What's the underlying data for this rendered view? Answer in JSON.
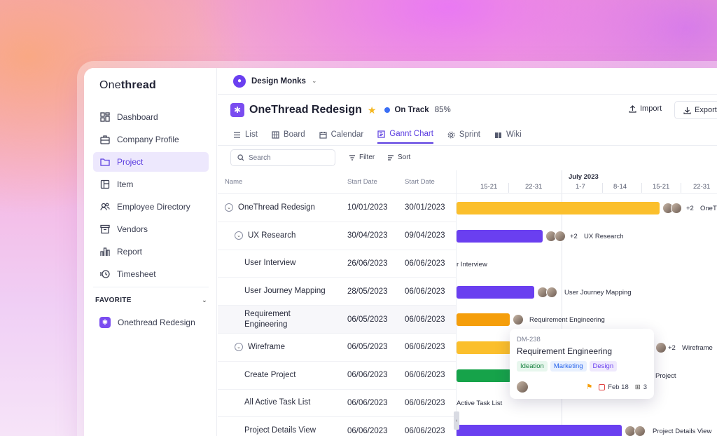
{
  "sidebar": {
    "logo_light": "One",
    "logo_bold": "thread",
    "items": [
      {
        "label": "Dashboard",
        "icon": "dashboard-icon"
      },
      {
        "label": "Company Profile",
        "icon": "briefcase-icon"
      },
      {
        "label": "Project",
        "icon": "folder-icon",
        "active": true
      },
      {
        "label": "Item",
        "icon": "item-icon"
      },
      {
        "label": "Employee Directory",
        "icon": "users-icon"
      },
      {
        "label": "Vendors",
        "icon": "archive-icon"
      },
      {
        "label": "Report",
        "icon": "chart-icon"
      },
      {
        "label": "Timesheet",
        "icon": "clock-icon"
      }
    ],
    "favorite_heading": "FAVORITE",
    "favorite_item": "Onethread Redesign"
  },
  "topbar": {
    "workspace": "Design Monks"
  },
  "project": {
    "title": "OneThread Redesign",
    "status": "On Track",
    "progress": "85%",
    "import_label": "Import",
    "export_label": "Export"
  },
  "tabs": [
    {
      "label": "List",
      "icon": "list-icon"
    },
    {
      "label": "Board",
      "icon": "board-icon"
    },
    {
      "label": "Calendar",
      "icon": "calendar-icon"
    },
    {
      "label": "Gannt Chart",
      "icon": "gantt-icon",
      "active": true
    },
    {
      "label": "Sprint",
      "icon": "gear-icon"
    },
    {
      "label": "Wiki",
      "icon": "book-icon"
    }
  ],
  "toolbar": {
    "search_placeholder": "Search",
    "filter_label": "Filter",
    "sort_label": "Sort"
  },
  "table": {
    "headers": {
      "name": "Name",
      "start": "Start Date",
      "end": "Start Date"
    },
    "rows": [
      {
        "name": "OneThread Redesign",
        "start": "10/01/2023",
        "end": "30/01/2023",
        "level": 0,
        "group": true
      },
      {
        "name": "UX Research",
        "start": "30/04/2023",
        "end": "09/04/2023",
        "level": 1,
        "group": true
      },
      {
        "name": "User Interview",
        "start": "26/06/2023",
        "end": "06/06/2023",
        "level": 2
      },
      {
        "name": "User Journey Mapping",
        "start": "28/05/2023",
        "end": "06/06/2023",
        "level": 2
      },
      {
        "name": "Requirement Engineering",
        "start": "06/05/2023",
        "end": "06/06/2023",
        "level": 2,
        "highlight": true
      },
      {
        "name": "Wireframe",
        "start": "06/05/2023",
        "end": "06/06/2023",
        "level": 1,
        "group": true
      },
      {
        "name": "Create Project",
        "start": "06/06/2023",
        "end": "06/06/2023",
        "level": 2
      },
      {
        "name": "All Active Task List",
        "start": "06/06/2023",
        "end": "06/06/2023",
        "level": 2
      },
      {
        "name": "Project Details View",
        "start": "06/06/2023",
        "end": "06/06/2023",
        "level": 2
      }
    ]
  },
  "gantt": {
    "month": "July 2023",
    "weeks": [
      "15-21",
      "22-31",
      "1-7",
      "8-14",
      "15-21",
      "22-31"
    ],
    "labels": {
      "r0": "+2",
      "r0b": "OneT",
      "r1": "+2",
      "r1b": "UX Research",
      "r2": "r Interview",
      "r3": "User Journey Mapping",
      "r4": "Requirement Engineering",
      "r5": "+2",
      "r5b": "Wireframe",
      "r6": "Project",
      "r7": "Active Task List",
      "r9": "Project Details View"
    },
    "colors": {
      "yellow": "#fbbf2c",
      "purple": "#6a3ff0",
      "orange": "#f59e0b",
      "green": "#16a34a"
    }
  },
  "popover": {
    "id": "DM-238",
    "title": "Requirement Engineering",
    "tags": [
      {
        "label": "Ideation",
        "color": "#15803d",
        "bg": "#e8f7ee"
      },
      {
        "label": "Marketing",
        "color": "#2563eb",
        "bg": "#e8f0fe"
      },
      {
        "label": "Design",
        "color": "#6a3ff0",
        "bg": "#efe9fd"
      }
    ],
    "date": "Feb 18",
    "subtasks": "3"
  }
}
